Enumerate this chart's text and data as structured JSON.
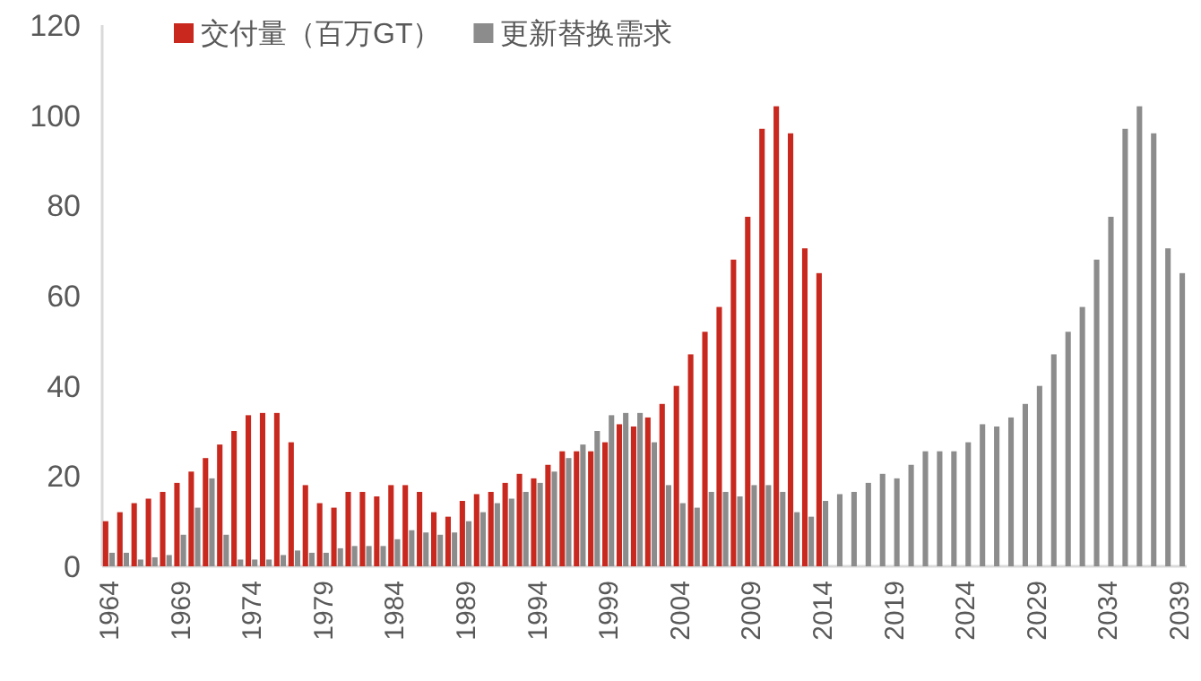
{
  "chart_data": {
    "type": "bar",
    "categories": [
      "1964",
      null,
      null,
      null,
      null,
      "1969",
      null,
      null,
      null,
      null,
      "1974",
      null,
      null,
      null,
      null,
      "1979",
      null,
      null,
      null,
      null,
      "1984",
      null,
      null,
      null,
      null,
      "1989",
      null,
      null,
      null,
      null,
      "1994",
      null,
      null,
      null,
      null,
      "1999",
      null,
      null,
      null,
      null,
      "2004",
      null,
      null,
      null,
      null,
      "2009",
      null,
      null,
      null,
      null,
      "2014",
      null,
      null,
      null,
      null,
      "2019",
      null,
      null,
      null,
      null,
      "2024",
      null,
      null,
      null,
      null,
      "2029",
      null,
      null,
      null,
      null,
      "2034",
      null,
      null,
      null,
      null,
      "2039"
    ],
    "series": [
      {
        "name": "交付量（百万GT）",
        "color": "#c8281e",
        "values": [
          10,
          12,
          14,
          15,
          16.5,
          18.5,
          21,
          24,
          27,
          30,
          33.5,
          34,
          34,
          27.5,
          18,
          14,
          13,
          16.5,
          16.5,
          15.5,
          18,
          18,
          16.5,
          12,
          11,
          14.5,
          16,
          16.5,
          18.5,
          20.5,
          19.5,
          22.5,
          25.5,
          25.5,
          25.5,
          27.5,
          31.5,
          31,
          33,
          36,
          40,
          47,
          52,
          57.5,
          68,
          77.5,
          97,
          102,
          96,
          70.5,
          65,
          null,
          null,
          null,
          null,
          null,
          null,
          null,
          null,
          null,
          null,
          null,
          null,
          null,
          null,
          null,
          null,
          null,
          null,
          null,
          null,
          null,
          null,
          null,
          null,
          null
        ]
      },
      {
        "name": "更新替换需求",
        "color": "#8c8c8c",
        "values": [
          3,
          3,
          1.5,
          2,
          2.5,
          7,
          13,
          19.5,
          7,
          1.5,
          1.5,
          1.5,
          2.5,
          3.5,
          3,
          3,
          4,
          4.5,
          4.5,
          4.5,
          6,
          8,
          7.5,
          7,
          7.5,
          10,
          12,
          14,
          15,
          16.5,
          18.5,
          21,
          24,
          27,
          30,
          33.5,
          34,
          34,
          27.5,
          18,
          14,
          13,
          16.5,
          16.5,
          15.5,
          18,
          18,
          16.5,
          12,
          11,
          14.5,
          16,
          16.5,
          18.5,
          20.5,
          19.5,
          22.5,
          25.5,
          25.5,
          25.5,
          27.5,
          31.5,
          31,
          33,
          36,
          40,
          47,
          52,
          57.5,
          68,
          77.5,
          97,
          102,
          96,
          70.5,
          65
        ]
      }
    ],
    "ylim": [
      0,
      120
    ],
    "yticks": [
      0,
      20,
      40,
      60,
      80,
      100,
      120
    ],
    "grid": false,
    "legend": "top"
  }
}
